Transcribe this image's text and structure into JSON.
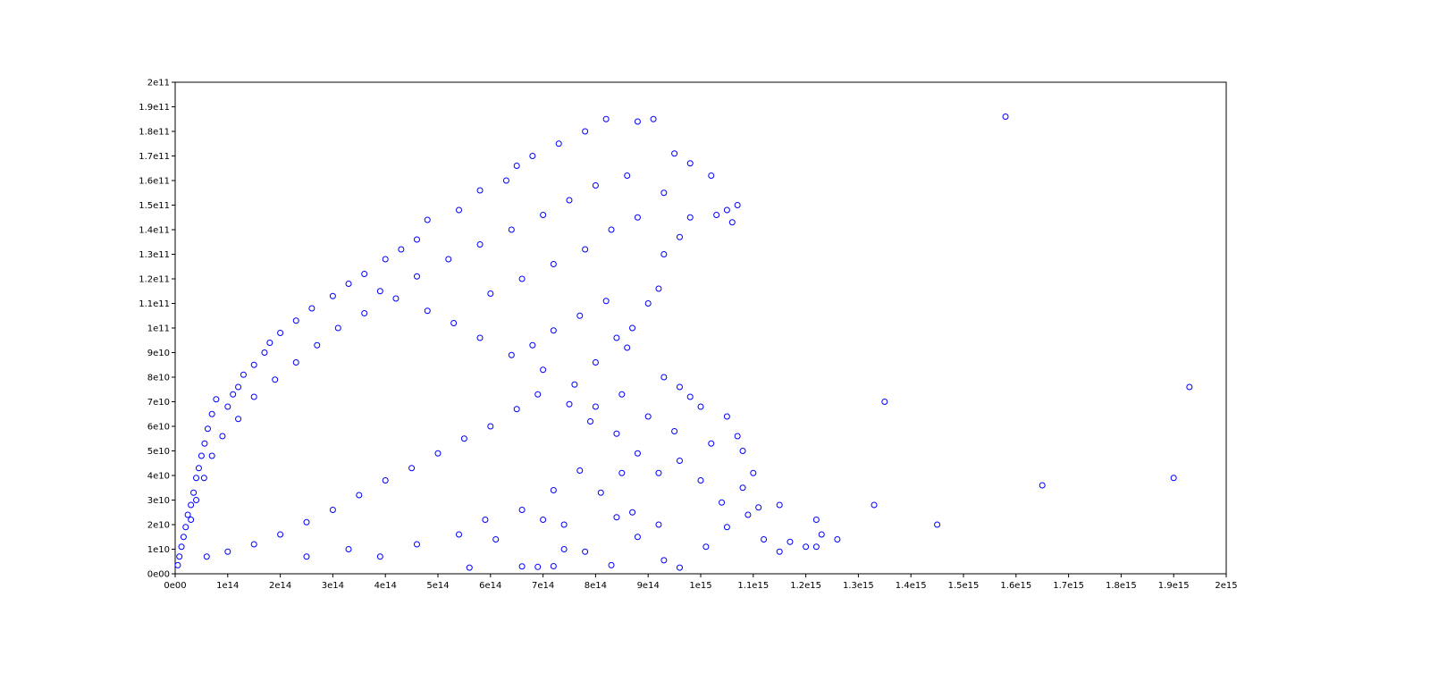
{
  "chart_data": {
    "type": "scatter",
    "title": "",
    "xlabel": "",
    "ylabel": "",
    "xlim": [
      0,
      2000000000000000.0
    ],
    "ylim": [
      0,
      200000000000.0
    ],
    "grid": false,
    "legend": "none",
    "marker": "circle",
    "marker_color": "#0000ff",
    "x_ticks": [
      {
        "value": 0,
        "label": "0e00"
      },
      {
        "value": 100000000000000.0,
        "label": "1e14"
      },
      {
        "value": 200000000000000.0,
        "label": "2e14"
      },
      {
        "value": 300000000000000.0,
        "label": "3e14"
      },
      {
        "value": 400000000000000.0,
        "label": "4e14"
      },
      {
        "value": 500000000000000.0,
        "label": "5e14"
      },
      {
        "value": 600000000000000.0,
        "label": "6e14"
      },
      {
        "value": 700000000000000.0,
        "label": "7e14"
      },
      {
        "value": 800000000000000.0,
        "label": "8e14"
      },
      {
        "value": 900000000000000.0,
        "label": "9e14"
      },
      {
        "value": 1000000000000000.0,
        "label": "1e15"
      },
      {
        "value": 1100000000000000.0,
        "label": "1.1e15"
      },
      {
        "value": 1200000000000000.0,
        "label": "1.2e15"
      },
      {
        "value": 1300000000000000.0,
        "label": "1.3e15"
      },
      {
        "value": 1400000000000000.0,
        "label": "1.4e15"
      },
      {
        "value": 1500000000000000.0,
        "label": "1.5e15"
      },
      {
        "value": 1600000000000000.0,
        "label": "1.6e15"
      },
      {
        "value": 1700000000000000.0,
        "label": "1.7e15"
      },
      {
        "value": 1800000000000000.0,
        "label": "1.8e15"
      },
      {
        "value": 1900000000000000.0,
        "label": "1.9e15"
      },
      {
        "value": 2000000000000000.0,
        "label": "2e15"
      }
    ],
    "y_ticks": [
      {
        "value": 0,
        "label": "0e00"
      },
      {
        "value": 10000000000.0,
        "label": "1e10"
      },
      {
        "value": 20000000000.0,
        "label": "2e10"
      },
      {
        "value": 30000000000.0,
        "label": "3e10"
      },
      {
        "value": 40000000000.0,
        "label": "4e10"
      },
      {
        "value": 50000000000.0,
        "label": "5e10"
      },
      {
        "value": 60000000000.0,
        "label": "6e10"
      },
      {
        "value": 70000000000.0,
        "label": "7e10"
      },
      {
        "value": 80000000000.0,
        "label": "8e10"
      },
      {
        "value": 90000000000.0,
        "label": "9e10"
      },
      {
        "value": 100000000000.0,
        "label": "1e11"
      },
      {
        "value": 110000000000.0,
        "label": "1.1e11"
      },
      {
        "value": 120000000000.0,
        "label": "1.2e11"
      },
      {
        "value": 130000000000.0,
        "label": "1.3e11"
      },
      {
        "value": 140000000000.0,
        "label": "1.4e11"
      },
      {
        "value": 150000000000.0,
        "label": "1.5e11"
      },
      {
        "value": 160000000000.0,
        "label": "1.6e11"
      },
      {
        "value": 170000000000.0,
        "label": "1.7e11"
      },
      {
        "value": 180000000000.0,
        "label": "1.8e11"
      },
      {
        "value": 190000000000.0,
        "label": "1.9e11"
      },
      {
        "value": 200000000000.0,
        "label": "2e11"
      }
    ],
    "series": [
      {
        "color": "#0000ff",
        "points": [
          [
            5000000000000.0,
            3500000000.0
          ],
          [
            8000000000000.0,
            7000000000.0
          ],
          [
            12000000000000.0,
            11000000000.0
          ],
          [
            16000000000000.0,
            15000000000.0
          ],
          [
            20000000000000.0,
            19000000000.0
          ],
          [
            24000000000000.0,
            24000000000.0
          ],
          [
            30000000000000.0,
            28000000000.0
          ],
          [
            35000000000000.0,
            33000000000.0
          ],
          [
            40000000000000.0,
            39000000000.0
          ],
          [
            45000000000000.0,
            43000000000.0
          ],
          [
            50000000000000.0,
            48000000000.0
          ],
          [
            56000000000000.0,
            53000000000.0
          ],
          [
            62000000000000.0,
            59000000000.0
          ],
          [
            70000000000000.0,
            65000000000.0
          ],
          [
            78000000000000.0,
            71000000000.0
          ],
          [
            100000000000000.0,
            68000000000.0
          ],
          [
            110000000000000.0,
            73000000000.0
          ],
          [
            120000000000000.0,
            76000000000.0
          ],
          [
            130000000000000.0,
            81000000000.0
          ],
          [
            150000000000000.0,
            85000000000.0
          ],
          [
            170000000000000.0,
            90000000000.0
          ],
          [
            180000000000000.0,
            94000000000.0
          ],
          [
            200000000000000.0,
            98000000000.0
          ],
          [
            230000000000000.0,
            103000000000.0
          ],
          [
            260000000000000.0,
            108000000000.0
          ],
          [
            300000000000000.0,
            113000000000.0
          ],
          [
            330000000000000.0,
            118000000000.0
          ],
          [
            360000000000000.0,
            122000000000.0
          ],
          [
            400000000000000.0,
            128000000000.0
          ],
          [
            430000000000000.0,
            132000000000.0
          ],
          [
            460000000000000.0,
            136000000000.0
          ],
          [
            480000000000000.0,
            144000000000.0
          ],
          [
            540000000000000.0,
            148000000000.0
          ],
          [
            580000000000000.0,
            156000000000.0
          ],
          [
            630000000000000.0,
            160000000000.0
          ],
          [
            650000000000000.0,
            166000000000.0
          ],
          [
            680000000000000.0,
            170000000000.0
          ],
          [
            730000000000000.0,
            175000000000.0
          ],
          [
            780000000000000.0,
            180000000000.0
          ],
          [
            820000000000000.0,
            185000000000.0
          ],
          [
            880000000000000.0,
            184000000000.0
          ],
          [
            910000000000000.0,
            185000000000.0
          ],
          [
            950000000000000.0,
            171000000000.0
          ],
          [
            980000000000000.0,
            167000000000.0
          ],
          [
            1020000000000000.0,
            162000000000.0
          ],
          [
            1050000000000000.0,
            148000000000.0
          ],
          [
            1070000000000000.0,
            150000000000.0
          ],
          [
            1060000000000000.0,
            143000000000.0
          ],
          [
            1030000000000000.0,
            146000000000.0
          ],
          [
            960000000000000.0,
            137000000000.0
          ],
          [
            930000000000000.0,
            130000000000.0
          ],
          [
            920000000000000.0,
            116000000000.0
          ],
          [
            900000000000000.0,
            110000000000.0
          ],
          [
            870000000000000.0,
            100000000000.0
          ],
          [
            860000000000000.0,
            92000000000.0
          ],
          [
            930000000000000.0,
            80000000000.0
          ],
          [
            960000000000000.0,
            76000000000.0
          ],
          [
            980000000000000.0,
            72000000000.0
          ],
          [
            1000000000000000.0,
            68000000000.0
          ],
          [
            1050000000000000.0,
            64000000000.0
          ],
          [
            1070000000000000.0,
            56000000000.0
          ],
          [
            1080000000000000.0,
            50000000000.0
          ],
          [
            1100000000000000.0,
            41000000000.0
          ],
          [
            1080000000000000.0,
            35000000000.0
          ],
          [
            1090000000000000.0,
            24000000000.0
          ],
          [
            1120000000000000.0,
            14000000000.0
          ],
          [
            1150000000000000.0,
            9000000000.0
          ],
          [
            1170000000000000.0,
            13000000000.0
          ],
          [
            1200000000000000.0,
            11000000000.0
          ],
          [
            1220000000000000.0,
            11000000000.0
          ],
          [
            1110000000000000.0,
            27000000000.0
          ],
          [
            1150000000000000.0,
            28000000000.0
          ],
          [
            1220000000000000.0,
            22000000000.0
          ],
          [
            1230000000000000.0,
            16000000000.0
          ],
          [
            1260000000000000.0,
            14000000000.0
          ],
          [
            1330000000000000.0,
            28000000000.0
          ],
          [
            1350000000000000.0,
            70000000000.0
          ],
          [
            1450000000000000.0,
            20000000000.0
          ],
          [
            1580000000000000.0,
            186000000000.0
          ],
          [
            1650000000000000.0,
            36000000000.0
          ],
          [
            1900000000000000.0,
            39000000000.0
          ],
          [
            1930000000000000.0,
            76000000000.0
          ],
          [
            560000000000000.0,
            2500000000.0
          ],
          [
            660000000000000.0,
            3000000000.0
          ],
          [
            690000000000000.0,
            2800000000.0
          ],
          [
            720000000000000.0,
            3100000000.0
          ],
          [
            830000000000000.0,
            3500000000.0
          ],
          [
            960000000000000.0,
            2500000000.0
          ],
          [
            930000000000000.0,
            5500000000.0
          ],
          [
            700000000000000.0,
            22000000000.0
          ],
          [
            740000000000000.0,
            20000000000.0
          ],
          [
            780000000000000.0,
            9000000000.0
          ],
          [
            870000000000000.0,
            25000000000.0
          ],
          [
            880000000000000.0,
            15000000000.0
          ],
          [
            920000000000000.0,
            20000000000.0
          ],
          [
            1010000000000000.0,
            11000000000.0
          ],
          [
            1050000000000000.0,
            19000000000.0
          ],
          [
            1040000000000000.0,
            29000000000.0
          ],
          [
            1000000000000000.0,
            38000000000.0
          ],
          [
            960000000000000.0,
            46000000000.0
          ],
          [
            920000000000000.0,
            41000000000.0
          ],
          [
            880000000000000.0,
            49000000000.0
          ],
          [
            840000000000000.0,
            57000000000.0
          ],
          [
            790000000000000.0,
            62000000000.0
          ],
          [
            750000000000000.0,
            69000000000.0
          ],
          [
            690000000000000.0,
            73000000000.0
          ],
          [
            650000000000000.0,
            67000000000.0
          ],
          [
            600000000000000.0,
            60000000000.0
          ],
          [
            550000000000000.0,
            55000000000.0
          ],
          [
            500000000000000.0,
            49000000000.0
          ],
          [
            450000000000000.0,
            43000000000.0
          ],
          [
            400000000000000.0,
            38000000000.0
          ],
          [
            350000000000000.0,
            32000000000.0
          ],
          [
            300000000000000.0,
            26000000000.0
          ],
          [
            250000000000000.0,
            21000000000.0
          ],
          [
            200000000000000.0,
            16000000000.0
          ],
          [
            150000000000000.0,
            12000000000.0
          ],
          [
            100000000000000.0,
            9000000000.0
          ],
          [
            60000000000000.0,
            7000000000.0
          ],
          [
            250000000000000.0,
            7000000000.0
          ],
          [
            330000000000000.0,
            10000000000.0
          ],
          [
            390000000000000.0,
            7000000000.0
          ],
          [
            460000000000000.0,
            12000000000.0
          ],
          [
            540000000000000.0,
            16000000000.0
          ],
          [
            590000000000000.0,
            22000000000.0
          ],
          [
            610000000000000.0,
            14000000000.0
          ],
          [
            660000000000000.0,
            26000000000.0
          ],
          [
            720000000000000.0,
            34000000000.0
          ],
          [
            770000000000000.0,
            42000000000.0
          ],
          [
            810000000000000.0,
            33000000000.0
          ],
          [
            850000000000000.0,
            41000000000.0
          ],
          [
            700000000000000.0,
            83000000000.0
          ],
          [
            640000000000000.0,
            89000000000.0
          ],
          [
            580000000000000.0,
            96000000000.0
          ],
          [
            530000000000000.0,
            102000000000.0
          ],
          [
            480000000000000.0,
            107000000000.0
          ],
          [
            420000000000000.0,
            112000000000.0
          ],
          [
            360000000000000.0,
            106000000000.0
          ],
          [
            310000000000000.0,
            100000000000.0
          ],
          [
            270000000000000.0,
            93000000000.0
          ],
          [
            230000000000000.0,
            86000000000.0
          ],
          [
            190000000000000.0,
            79000000000.0
          ],
          [
            150000000000000.0,
            72000000000.0
          ],
          [
            120000000000000.0,
            63000000000.0
          ],
          [
            90000000000000.0,
            56000000000.0
          ],
          [
            70000000000000.0,
            48000000000.0
          ],
          [
            55000000000000.0,
            39000000000.0
          ],
          [
            40000000000000.0,
            30000000000.0
          ],
          [
            30000000000000.0,
            22000000000.0
          ],
          [
            600000000000000.0,
            114000000000.0
          ],
          [
            660000000000000.0,
            120000000000.0
          ],
          [
            720000000000000.0,
            126000000000.0
          ],
          [
            780000000000000.0,
            132000000000.0
          ],
          [
            830000000000000.0,
            140000000000.0
          ],
          [
            880000000000000.0,
            145000000000.0
          ],
          [
            800000000000000.0,
            158000000000.0
          ],
          [
            750000000000000.0,
            152000000000.0
          ],
          [
            700000000000000.0,
            146000000000.0
          ],
          [
            640000000000000.0,
            140000000000.0
          ],
          [
            580000000000000.0,
            134000000000.0
          ],
          [
            520000000000000.0,
            128000000000.0
          ],
          [
            460000000000000.0,
            121000000000.0
          ],
          [
            390000000000000.0,
            115000000000.0
          ],
          [
            860000000000000.0,
            162000000000.0
          ],
          [
            930000000000000.0,
            155000000000.0
          ],
          [
            980000000000000.0,
            145000000000.0
          ],
          [
            820000000000000.0,
            111000000000.0
          ],
          [
            770000000000000.0,
            105000000000.0
          ],
          [
            720000000000000.0,
            99000000000.0
          ],
          [
            680000000000000.0,
            93000000000.0
          ],
          [
            800000000000000.0,
            86000000000.0
          ],
          [
            840000000000000.0,
            96000000000.0
          ],
          [
            760000000000000.0,
            77000000000.0
          ],
          [
            800000000000000.0,
            68000000000.0
          ],
          [
            850000000000000.0,
            73000000000.0
          ],
          [
            900000000000000.0,
            64000000000.0
          ],
          [
            950000000000000.0,
            58000000000.0
          ],
          [
            1020000000000000.0,
            53000000000.0
          ],
          [
            840000000000000.0,
            23000000000.0
          ],
          [
            740000000000000.0,
            10000000000.0
          ]
        ]
      }
    ]
  }
}
